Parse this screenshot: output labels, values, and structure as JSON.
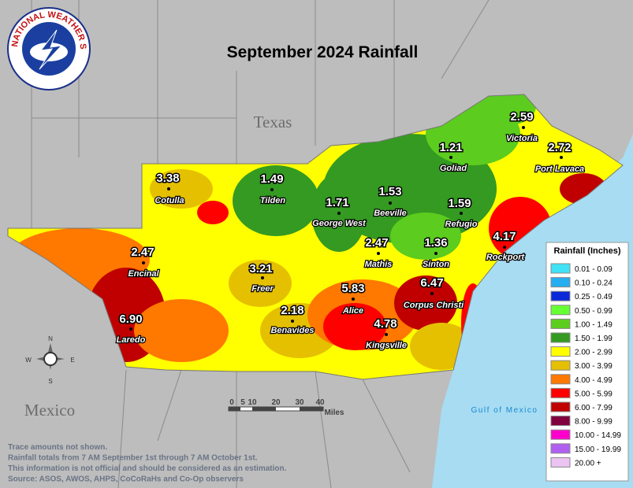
{
  "title": "September 2024 Rainfall",
  "logo_text": "NATIONAL WEATHER SERVICE",
  "places": {
    "state": "Texas",
    "country": "Mexico",
    "gulf": "Gulf of Mexico"
  },
  "stations": [
    {
      "name": "Victoria",
      "value": "2.59"
    },
    {
      "name": "Port Lavaca",
      "value": "2.72"
    },
    {
      "name": "Goliad",
      "value": "1.21"
    },
    {
      "name": "Cotulla",
      "value": "3.38"
    },
    {
      "name": "Tilden",
      "value": "1.49"
    },
    {
      "name": "George West",
      "value": "1.71"
    },
    {
      "name": "Beeville",
      "value": "1.53"
    },
    {
      "name": "Refugio",
      "value": "1.59"
    },
    {
      "name": "Encinal",
      "value": "2.47"
    },
    {
      "name": "Mathis",
      "value": "2.47"
    },
    {
      "name": "Sinton",
      "value": "1.36"
    },
    {
      "name": "Rockport",
      "value": "4.17"
    },
    {
      "name": "Freer",
      "value": "3.21"
    },
    {
      "name": "Alice",
      "value": "5.83"
    },
    {
      "name": "Corpus Christi",
      "value": "6.47"
    },
    {
      "name": "Benavides",
      "value": "2.18"
    },
    {
      "name": "Kingsville",
      "value": "4.78"
    },
    {
      "name": "Laredo",
      "value": "6.90"
    }
  ],
  "legend": {
    "title": "Rainfall (Inches)",
    "items": [
      {
        "label": "0.01 - 0.09",
        "color": "#3fe3f5"
      },
      {
        "label": "0.10 - 0.24",
        "color": "#27aef0"
      },
      {
        "label": "0.25 - 0.49",
        "color": "#0a28d8"
      },
      {
        "label": "0.50 - 0.99",
        "color": "#66ff33"
      },
      {
        "label": "1.00 - 1.49",
        "color": "#5ccc1e"
      },
      {
        "label": "1.50 - 1.99",
        "color": "#349a22"
      },
      {
        "label": "2.00 - 2.99",
        "color": "#ffff00"
      },
      {
        "label": "3.00 - 3.99",
        "color": "#e5c000"
      },
      {
        "label": "4.00 - 4.99",
        "color": "#ff7800"
      },
      {
        "label": "5.00 - 5.99",
        "color": "#ff0000"
      },
      {
        "label": "6.00 - 7.99",
        "color": "#c00000"
      },
      {
        "label": "8.00 - 9.99",
        "color": "#800040"
      },
      {
        "label": "10.00 - 14.99",
        "color": "#ff00cc"
      },
      {
        "label": "15.00 - 19.99",
        "color": "#b060f0"
      },
      {
        "label": "20.00 +",
        "color": "#ecc4f2"
      }
    ]
  },
  "compass": [
    "N",
    "E",
    "S",
    "W"
  ],
  "scale": {
    "ticks": [
      "0",
      "5",
      "10",
      "20",
      "30",
      "40"
    ],
    "unit": "Miles"
  },
  "notes": [
    "Trace amounts not shown.",
    "Rainfall totals from 7 AM September 1st through 7 AM October 1st.",
    "This information is not official and should be considered as an estimation.",
    "Source: ASOS, AWOS, AHPS, CoCoRaHs and Co-Op observers"
  ]
}
